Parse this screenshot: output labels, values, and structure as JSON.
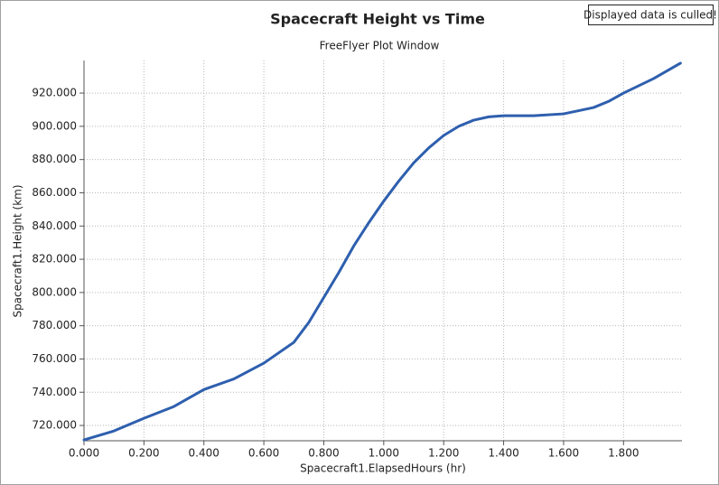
{
  "chart_data": {
    "type": "line",
    "title": "Spacecraft Height vs Time",
    "subtitle": "FreeFlyer Plot Window",
    "annotation": "Displayed data is culled!",
    "x_label": "Spacecraft1.ElapsedHours (hr)",
    "y_label": "Spacecraft1.Height (km)",
    "grid": true,
    "x": [
      0,
      0.1,
      0.2,
      0.3,
      0.4,
      0.5,
      0.6,
      0.7,
      0.75,
      0.8,
      0.85,
      0.9,
      0.95,
      1.0,
      1.05,
      1.1,
      1.15,
      1.2,
      1.25,
      1.3,
      1.35,
      1.4,
      1.5,
      1.6,
      1.7,
      1.75,
      1.8,
      1.9,
      1.99
    ],
    "series": [
      {
        "color": "#2e5fae",
        "values": [
          711.3,
          716.7,
          724.3,
          731.4,
          741.6,
          748,
          757.5,
          770,
          782,
          797,
          812,
          828,
          842,
          855,
          867,
          878,
          887,
          894.5,
          900,
          903.7,
          905.7,
          906.4,
          906.4,
          907.5,
          911.3,
          915,
          920,
          928.7,
          938
        ]
      }
    ],
    "xlim": [
      0,
      1.995
    ],
    "ylim": [
      710.8,
      939.6
    ],
    "xticks": [
      {
        "value": 0,
        "label": "0.000"
      },
      {
        "value": 0.2,
        "label": "0.200"
      },
      {
        "value": 0.4,
        "label": "0.400"
      },
      {
        "value": 0.6,
        "label": "0.600"
      },
      {
        "value": 0.8,
        "label": "0.800"
      },
      {
        "value": 1.0,
        "label": "1.000"
      },
      {
        "value": 1.2,
        "label": "1.200"
      },
      {
        "value": 1.4,
        "label": "1.400"
      },
      {
        "value": 1.6,
        "label": "1.600"
      },
      {
        "value": 1.8,
        "label": "1.800"
      }
    ],
    "yticks": [
      {
        "value": 720,
        "label": "720.000"
      },
      {
        "value": 740,
        "label": "740.000"
      },
      {
        "value": 760,
        "label": "760.000"
      },
      {
        "value": 780,
        "label": "780.000"
      },
      {
        "value": 800,
        "label": "800.000"
      },
      {
        "value": 820,
        "label": "820.000"
      },
      {
        "value": 840,
        "label": "840.000"
      },
      {
        "value": 860,
        "label": "860.000"
      },
      {
        "value": 880,
        "label": "880.000"
      },
      {
        "value": 900,
        "label": "900.000"
      },
      {
        "value": 920,
        "label": "920.000"
      }
    ]
  }
}
